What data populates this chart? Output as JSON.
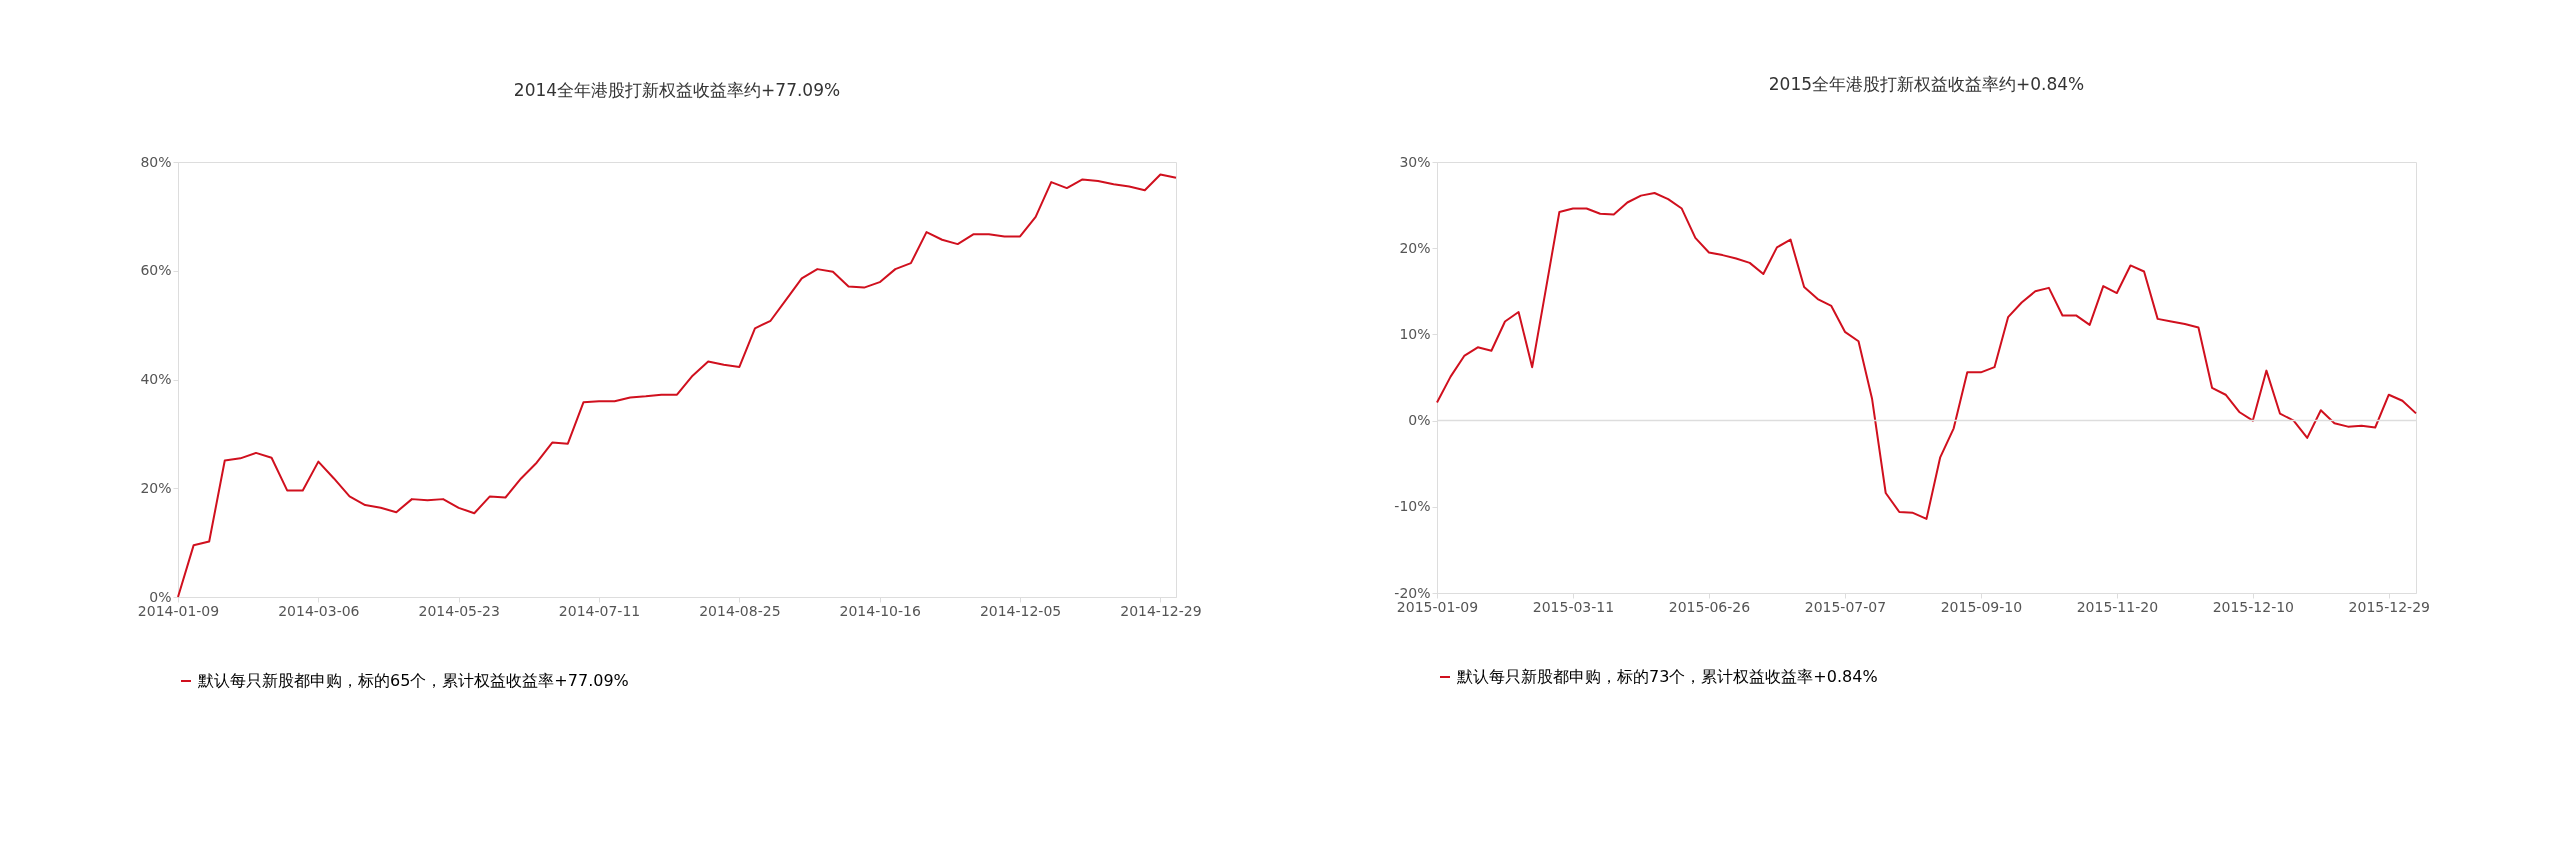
{
  "chart_data": [
    {
      "type": "line",
      "title": "2014全年港股打新权益收益率约+77.09%",
      "categories": [
        "2014-01-09",
        null,
        null,
        null,
        null,
        null,
        null,
        null,
        null,
        "2014-03-06",
        null,
        null,
        null,
        null,
        null,
        null,
        null,
        null,
        "2014-05-23",
        null,
        null,
        null,
        null,
        null,
        null,
        null,
        null,
        "2014-07-11",
        null,
        null,
        null,
        null,
        null,
        null,
        null,
        null,
        "2014-08-25",
        null,
        null,
        null,
        null,
        null,
        null,
        null,
        null,
        "2014-10-16",
        null,
        null,
        null,
        null,
        null,
        null,
        null,
        null,
        "2014-12-05",
        null,
        null,
        null,
        null,
        null,
        null,
        null,
        null,
        "2014-12-29",
        null
      ],
      "series": [
        {
          "name": "默认每只新股都申购，标的65个，累计权益收益率+77.09%",
          "color": "#d0101e",
          "values": [
            0,
            9.5,
            10.2,
            25.1,
            25.5,
            26.5,
            25.6,
            19.6,
            19.6,
            24.9,
            21.8,
            18.5,
            16.9,
            16.4,
            15.6,
            18.0,
            17.8,
            18.0,
            16.4,
            15.4,
            18.5,
            18.3,
            21.8,
            24.7,
            28.4,
            28.2,
            35.8,
            36.0,
            36.0,
            36.7,
            36.9,
            37.2,
            37.2,
            40.7,
            43.3,
            42.7,
            42.3,
            49.4,
            50.8,
            54.7,
            58.6,
            60.3,
            59.8,
            57.1,
            56.9,
            57.9,
            60.3,
            61.4,
            67.1,
            65.7,
            64.9,
            66.7,
            66.7,
            66.3,
            66.3,
            69.9,
            76.3,
            75.2,
            76.8,
            76.5,
            75.9,
            75.5,
            74.8,
            77.7,
            77.09
          ]
        }
      ],
      "ylim": [
        0,
        80
      ],
      "yticks": [
        {
          "value": 0,
          "label": "0%"
        },
        {
          "value": 20,
          "label": "20%"
        },
        {
          "value": 40,
          "label": "40%"
        },
        {
          "value": 60,
          "label": "60%"
        },
        {
          "value": 80,
          "label": "80%"
        }
      ],
      "grid": false,
      "legend": "bottom",
      "marker": "none",
      "line_style": "solid"
    },
    {
      "type": "line",
      "title": "2015全年港股打新权益收益率约+0.84%",
      "categories": [
        "2015-01-09",
        null,
        null,
        null,
        null,
        null,
        null,
        null,
        null,
        null,
        "2015-03-11",
        null,
        null,
        null,
        null,
        null,
        null,
        null,
        null,
        null,
        "2015-06-26",
        null,
        null,
        null,
        null,
        null,
        null,
        null,
        null,
        null,
        "2015-07-07",
        null,
        null,
        null,
        null,
        null,
        null,
        null,
        null,
        null,
        "2015-09-10",
        null,
        null,
        null,
        null,
        null,
        null,
        null,
        null,
        null,
        "2015-11-20",
        null,
        null,
        null,
        null,
        null,
        null,
        null,
        null,
        null,
        "2015-12-10",
        null,
        null,
        null,
        null,
        null,
        null,
        null,
        null,
        null,
        "2015-12-29",
        null,
        null
      ],
      "series": [
        {
          "name": "默认每只新股都申购，标的73个，累计权益收益率+0.84%",
          "color": "#d0101e",
          "values": [
            2.1,
            5.1,
            7.5,
            8.5,
            8.1,
            11.5,
            12.6,
            6.2,
            15.2,
            24.2,
            24.6,
            24.6,
            24.0,
            23.9,
            25.3,
            26.1,
            26.4,
            25.7,
            24.6,
            21.2,
            19.5,
            19.2,
            18.8,
            18.3,
            17.0,
            20.1,
            21.0,
            15.5,
            14.1,
            13.3,
            10.3,
            9.2,
            2.5,
            -8.4,
            -10.6,
            -10.7,
            -11.4,
            -4.3,
            -0.9,
            5.6,
            5.6,
            6.2,
            12.0,
            13.7,
            15.0,
            15.4,
            12.2,
            12.2,
            11.1,
            15.6,
            14.8,
            18.0,
            17.3,
            11.8,
            11.5,
            11.2,
            10.8,
            3.8,
            3.0,
            1.0,
            0,
            5.8,
            0.8,
            0,
            -2.0,
            1.2,
            -0.3,
            -0.7,
            -0.6,
            -0.8,
            3.0,
            2.3,
            0.84
          ]
        }
      ],
      "ylim": [
        -20,
        30
      ],
      "yticks": [
        {
          "value": -20,
          "label": "-20%"
        },
        {
          "value": -10,
          "label": "-10%"
        },
        {
          "value": 0,
          "label": "0%"
        },
        {
          "value": 10,
          "label": "10%"
        },
        {
          "value": 20,
          "label": "20%"
        },
        {
          "value": 30,
          "label": "30%"
        }
      ],
      "ref_lines": [
        {
          "axis": "y",
          "value": 0,
          "color": "#dddddd"
        }
      ],
      "grid": false,
      "legend": "bottom",
      "marker": "none",
      "line_style": "solid"
    }
  ]
}
